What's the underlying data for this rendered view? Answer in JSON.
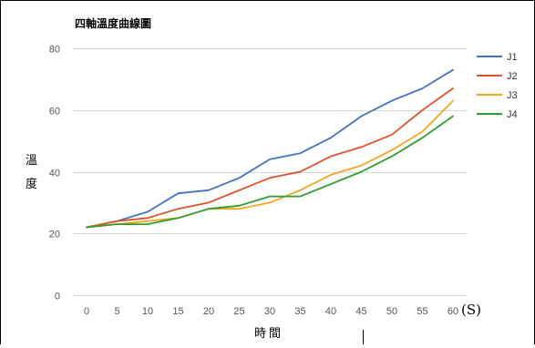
{
  "chart_data": {
    "type": "line",
    "title": "四軸溫度曲線圖",
    "xlabel": "時間",
    "x_unit": "(S)",
    "ylabel": "溫度",
    "x": [
      0,
      5,
      10,
      15,
      20,
      25,
      30,
      35,
      40,
      45,
      50,
      55,
      60
    ],
    "xlim": [
      0,
      60
    ],
    "ylim": [
      0,
      80
    ],
    "yticks": [
      0,
      20,
      40,
      60,
      80
    ],
    "grid": true,
    "legend": "right",
    "series": [
      {
        "name": "J1",
        "color": "#4472c4",
        "values": [
          22,
          24,
          27,
          33,
          34,
          38,
          44,
          46,
          51,
          58,
          63,
          67,
          73
        ]
      },
      {
        "name": "J2",
        "color": "#e0522d",
        "values": [
          22,
          24,
          25,
          28,
          30,
          34,
          38,
          40,
          45,
          48,
          52,
          60,
          67
        ]
      },
      {
        "name": "J3",
        "color": "#f5a623",
        "values": [
          22,
          23,
          24,
          25,
          28,
          28,
          30,
          34,
          39,
          42,
          47,
          53,
          63
        ]
      },
      {
        "name": "J4",
        "color": "#2e9e2e",
        "values": [
          22,
          23,
          23,
          25,
          28,
          29,
          32,
          32,
          36,
          40,
          45,
          51,
          58
        ]
      }
    ]
  }
}
